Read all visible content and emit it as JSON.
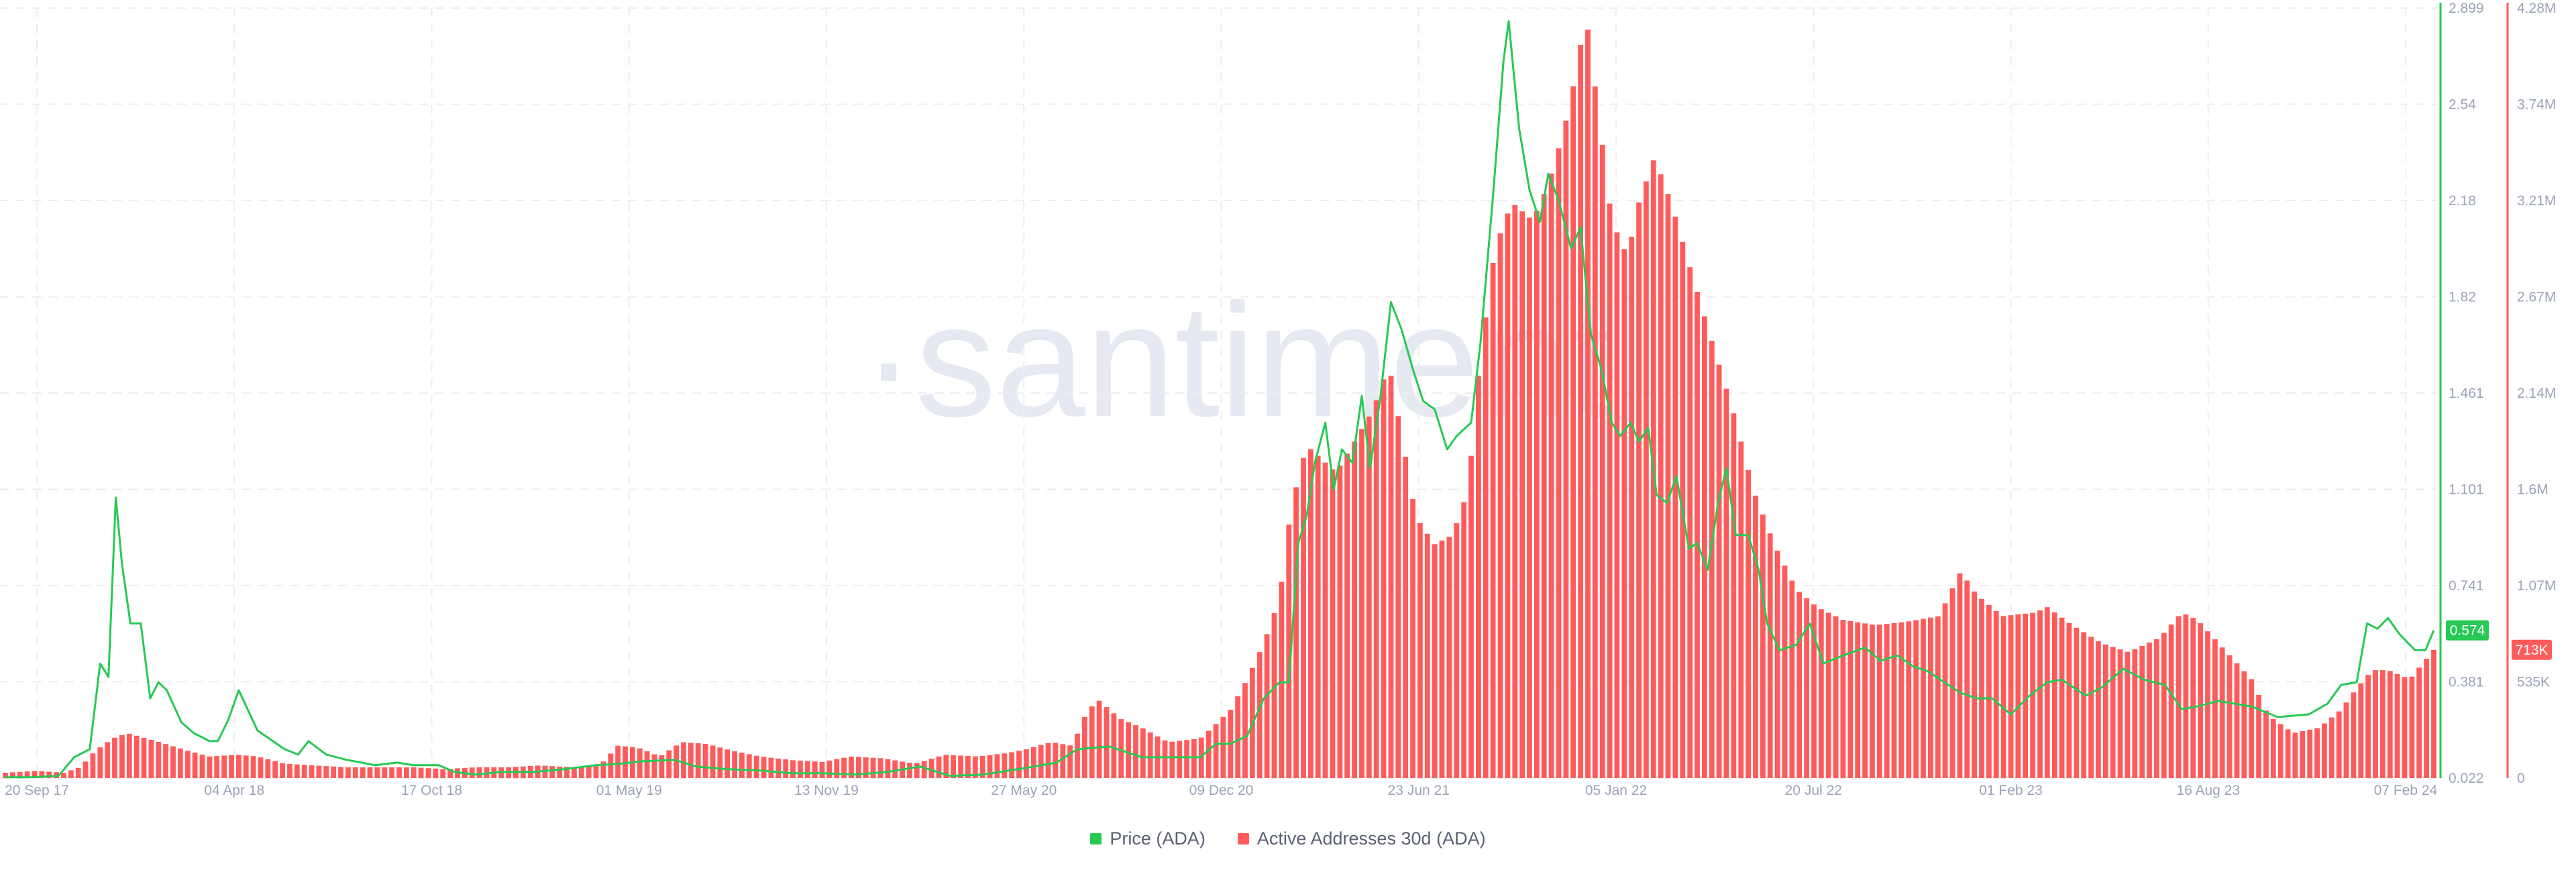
{
  "watermark": "·santiment",
  "legend": [
    {
      "label": "Price (ADA)",
      "color": "#26c953"
    },
    {
      "label": "Active Addresses 30d (ADA)",
      "color": "#ff5b5b"
    }
  ],
  "chart_data": {
    "type": "bar",
    "x_ticks": [
      "20 Sep 17",
      "04 Apr 18",
      "17 Oct 18",
      "01 May 19",
      "13 Nov 19",
      "27 May 20",
      "09 Dec 20",
      "23 Jun 21",
      "05 Jan 22",
      "20 Jul 22",
      "01 Feb 23",
      "16 Aug 23",
      "07 Feb 24"
    ],
    "x_range": [
      "2017-09-20",
      "2024-02-07"
    ],
    "price_axis": {
      "ticks": [
        "2.899",
        "2.54",
        "2.18",
        "1.82",
        "1.461",
        "1.101",
        "0.741",
        "0.381",
        "0.022"
      ],
      "ylim": [
        0.022,
        2.899
      ],
      "color": "#26c953"
    },
    "addresses_axis": {
      "ticks": [
        "4.28M",
        "3.74M",
        "3.21M",
        "2.67M",
        "2.14M",
        "1.6M",
        "1.07M",
        "535K",
        "0"
      ],
      "ylim": [
        0,
        4280000
      ],
      "color": "#ff5b5b"
    },
    "current_labels": {
      "price": "0.574",
      "addresses": "713K"
    },
    "grid": true,
    "legend_position": "bottom-center",
    "series": [
      {
        "name": "Price (ADA)",
        "type": "line",
        "color": "#26c953",
        "points": [
          [
            "2017-09-20",
            0.025
          ],
          [
            "2017-10-15",
            0.025
          ],
          [
            "2017-11-10",
            0.03
          ],
          [
            "2017-11-25",
            0.1
          ],
          [
            "2017-12-10",
            0.13
          ],
          [
            "2017-12-20",
            0.45
          ],
          [
            "2017-12-28",
            0.4
          ],
          [
            "2018-01-04",
            1.07
          ],
          [
            "2018-01-10",
            0.82
          ],
          [
            "2018-01-18",
            0.6
          ],
          [
            "2018-01-28",
            0.6
          ],
          [
            "2018-02-06",
            0.32
          ],
          [
            "2018-02-14",
            0.38
          ],
          [
            "2018-02-22",
            0.35
          ],
          [
            "2018-03-08",
            0.23
          ],
          [
            "2018-03-20",
            0.19
          ],
          [
            "2018-04-04",
            0.16
          ],
          [
            "2018-04-12",
            0.16
          ],
          [
            "2018-04-22",
            0.24
          ],
          [
            "2018-05-02",
            0.35
          ],
          [
            "2018-05-20",
            0.2
          ],
          [
            "2018-06-15",
            0.13
          ],
          [
            "2018-06-28",
            0.11
          ],
          [
            "2018-07-08",
            0.16
          ],
          [
            "2018-07-25",
            0.11
          ],
          [
            "2018-08-14",
            0.09
          ],
          [
            "2018-09-10",
            0.07
          ],
          [
            "2018-10-01",
            0.08
          ],
          [
            "2018-10-17",
            0.07
          ],
          [
            "2018-11-10",
            0.07
          ],
          [
            "2018-11-25",
            0.045
          ],
          [
            "2018-12-15",
            0.035
          ],
          [
            "2019-01-10",
            0.045
          ],
          [
            "2019-02-10",
            0.045
          ],
          [
            "2019-03-10",
            0.055
          ],
          [
            "2019-04-10",
            0.07
          ],
          [
            "2019-05-01",
            0.075
          ],
          [
            "2019-05-25",
            0.085
          ],
          [
            "2019-06-25",
            0.09
          ],
          [
            "2019-07-15",
            0.065
          ],
          [
            "2019-08-15",
            0.055
          ],
          [
            "2019-09-15",
            0.05
          ],
          [
            "2019-10-15",
            0.04
          ],
          [
            "2019-11-13",
            0.04
          ],
          [
            "2019-12-15",
            0.035
          ],
          [
            "2020-01-15",
            0.045
          ],
          [
            "2020-02-15",
            0.065
          ],
          [
            "2020-03-15",
            0.03
          ],
          [
            "2020-04-15",
            0.035
          ],
          [
            "2020-05-27",
            0.06
          ],
          [
            "2020-06-25",
            0.08
          ],
          [
            "2020-07-15",
            0.13
          ],
          [
            "2020-08-15",
            0.14
          ],
          [
            "2020-09-15",
            0.1
          ],
          [
            "2020-10-15",
            0.1
          ],
          [
            "2020-11-10",
            0.1
          ],
          [
            "2020-11-25",
            0.15
          ],
          [
            "2020-12-09",
            0.15
          ],
          [
            "2020-12-25",
            0.18
          ],
          [
            "2021-01-10",
            0.32
          ],
          [
            "2021-01-25",
            0.38
          ],
          [
            "2021-02-03",
            0.38
          ],
          [
            "2021-02-12",
            0.9
          ],
          [
            "2021-02-20",
            1.0
          ],
          [
            "2021-02-28",
            1.2
          ],
          [
            "2021-03-10",
            1.35
          ],
          [
            "2021-03-18",
            1.1
          ],
          [
            "2021-03-26",
            1.25
          ],
          [
            "2021-04-05",
            1.2
          ],
          [
            "2021-04-14",
            1.45
          ],
          [
            "2021-04-22",
            1.18
          ],
          [
            "2021-05-02",
            1.45
          ],
          [
            "2021-05-12",
            1.8
          ],
          [
            "2021-05-22",
            1.7
          ],
          [
            "2021-06-02",
            1.55
          ],
          [
            "2021-06-12",
            1.43
          ],
          [
            "2021-06-23",
            1.4
          ],
          [
            "2021-07-05",
            1.25
          ],
          [
            "2021-07-14",
            1.3
          ],
          [
            "2021-07-28",
            1.35
          ],
          [
            "2021-08-06",
            1.65
          ],
          [
            "2021-08-18",
            2.2
          ],
          [
            "2021-08-28",
            2.7
          ],
          [
            "2021-09-02",
            2.85
          ],
          [
            "2021-09-12",
            2.45
          ],
          [
            "2021-09-22",
            2.22
          ],
          [
            "2021-10-02",
            2.1
          ],
          [
            "2021-10-10",
            2.28
          ],
          [
            "2021-10-20",
            2.18
          ],
          [
            "2021-11-01",
            2.0
          ],
          [
            "2021-11-10",
            2.08
          ],
          [
            "2021-11-20",
            1.68
          ],
          [
            "2021-11-30",
            1.55
          ],
          [
            "2021-12-10",
            1.35
          ],
          [
            "2021-12-18",
            1.3
          ],
          [
            "2021-12-28",
            1.35
          ],
          [
            "2022-01-05",
            1.28
          ],
          [
            "2022-01-14",
            1.33
          ],
          [
            "2022-01-22",
            1.08
          ],
          [
            "2022-02-01",
            1.05
          ],
          [
            "2022-02-10",
            1.15
          ],
          [
            "2022-02-22",
            0.88
          ],
          [
            "2022-03-02",
            0.9
          ],
          [
            "2022-03-12",
            0.8
          ],
          [
            "2022-03-22",
            1.05
          ],
          [
            "2022-03-30",
            1.18
          ],
          [
            "2022-04-08",
            0.93
          ],
          [
            "2022-04-20",
            0.93
          ],
          [
            "2022-04-30",
            0.8
          ],
          [
            "2022-05-08",
            0.6
          ],
          [
            "2022-05-20",
            0.5
          ],
          [
            "2022-06-05",
            0.52
          ],
          [
            "2022-06-18",
            0.6
          ],
          [
            "2022-07-01",
            0.45
          ],
          [
            "2022-07-20",
            0.48
          ],
          [
            "2022-08-10",
            0.51
          ],
          [
            "2022-08-25",
            0.46
          ],
          [
            "2022-09-10",
            0.48
          ],
          [
            "2022-09-25",
            0.44
          ],
          [
            "2022-10-10",
            0.42
          ],
          [
            "2022-10-25",
            0.38
          ],
          [
            "2022-11-10",
            0.34
          ],
          [
            "2022-11-25",
            0.32
          ],
          [
            "2022-12-10",
            0.32
          ],
          [
            "2022-12-28",
            0.26
          ],
          [
            "2023-01-15",
            0.33
          ],
          [
            "2023-02-01",
            0.38
          ],
          [
            "2023-02-15",
            0.39
          ],
          [
            "2023-03-10",
            0.33
          ],
          [
            "2023-03-25",
            0.36
          ],
          [
            "2023-04-15",
            0.43
          ],
          [
            "2023-05-05",
            0.39
          ],
          [
            "2023-05-25",
            0.37
          ],
          [
            "2023-06-10",
            0.28
          ],
          [
            "2023-06-25",
            0.29
          ],
          [
            "2023-07-15",
            0.31
          ],
          [
            "2023-08-16",
            0.29
          ],
          [
            "2023-09-10",
            0.25
          ],
          [
            "2023-10-10",
            0.26
          ],
          [
            "2023-10-28",
            0.3
          ],
          [
            "2023-11-10",
            0.37
          ],
          [
            "2023-11-25",
            0.38
          ],
          [
            "2023-12-05",
            0.6
          ],
          [
            "2023-12-15",
            0.58
          ],
          [
            "2023-12-25",
            0.62
          ],
          [
            "2024-01-05",
            0.56
          ],
          [
            "2024-01-20",
            0.5
          ],
          [
            "2024-01-30",
            0.5
          ],
          [
            "2024-02-07",
            0.574
          ]
        ]
      },
      {
        "name": "Active Addresses 30d (ADA)",
        "type": "bar",
        "color": "#ff5b5b",
        "points": [
          [
            "2017-09-20",
            0.03
          ],
          [
            "2017-10-20",
            0.04
          ],
          [
            "2017-11-15",
            0.03
          ],
          [
            "2017-12-01",
            0.06
          ],
          [
            "2017-12-15",
            0.15
          ],
          [
            "2018-01-01",
            0.22
          ],
          [
            "2018-01-15",
            0.25
          ],
          [
            "2018-02-15",
            0.2
          ],
          [
            "2018-03-15",
            0.15
          ],
          [
            "2018-04-04",
            0.12
          ],
          [
            "2018-05-01",
            0.13
          ],
          [
            "2018-05-20",
            0.12
          ],
          [
            "2018-06-15",
            0.08
          ],
          [
            "2018-07-15",
            0.07
          ],
          [
            "2018-08-15",
            0.06
          ],
          [
            "2018-10-17",
            0.06
          ],
          [
            "2018-11-15",
            0.05
          ],
          [
            "2018-12-15",
            0.06
          ],
          [
            "2019-01-15",
            0.06
          ],
          [
            "2019-02-15",
            0.07
          ],
          [
            "2019-03-20",
            0.06
          ],
          [
            "2019-04-15",
            0.08
          ],
          [
            "2019-05-01",
            0.18
          ],
          [
            "2019-05-20",
            0.17
          ],
          [
            "2019-06-10",
            0.12
          ],
          [
            "2019-07-01",
            0.2
          ],
          [
            "2019-07-25",
            0.19
          ],
          [
            "2019-08-20",
            0.15
          ],
          [
            "2019-09-15",
            0.12
          ],
          [
            "2019-10-15",
            0.1
          ],
          [
            "2019-11-13",
            0.09
          ],
          [
            "2019-12-10",
            0.12
          ],
          [
            "2020-01-10",
            0.11
          ],
          [
            "2020-02-10",
            0.08
          ],
          [
            "2020-03-10",
            0.13
          ],
          [
            "2020-04-10",
            0.12
          ],
          [
            "2020-05-10",
            0.14
          ],
          [
            "2020-05-27",
            0.16
          ],
          [
            "2020-06-20",
            0.2
          ],
          [
            "2020-07-10",
            0.18
          ],
          [
            "2020-07-25",
            0.38
          ],
          [
            "2020-08-05",
            0.43
          ],
          [
            "2020-08-25",
            0.33
          ],
          [
            "2020-09-15",
            0.28
          ],
          [
            "2020-10-10",
            0.2
          ],
          [
            "2020-11-10",
            0.22
          ],
          [
            "2020-11-25",
            0.3
          ],
          [
            "2020-12-09",
            0.38
          ],
          [
            "2020-12-25",
            0.55
          ],
          [
            "2021-01-10",
            0.75
          ],
          [
            "2021-01-25",
            1.0
          ],
          [
            "2021-02-05",
            1.5
          ],
          [
            "2021-02-20",
            1.85
          ],
          [
            "2021-03-05",
            1.78
          ],
          [
            "2021-03-20",
            1.7
          ],
          [
            "2021-04-05",
            1.85
          ],
          [
            "2021-04-25",
            2.05
          ],
          [
            "2021-05-10",
            2.3
          ],
          [
            "2021-05-25",
            1.82
          ],
          [
            "2021-06-05",
            1.45
          ],
          [
            "2021-06-23",
            1.3
          ],
          [
            "2021-07-10",
            1.35
          ],
          [
            "2021-07-25",
            1.6
          ],
          [
            "2021-08-05",
            2.3
          ],
          [
            "2021-08-20",
            2.95
          ],
          [
            "2021-09-05",
            3.2
          ],
          [
            "2021-09-25",
            3.1
          ],
          [
            "2021-10-10",
            3.3
          ],
          [
            "2021-10-25",
            3.6
          ],
          [
            "2021-11-05",
            3.9
          ],
          [
            "2021-11-15",
            4.25
          ],
          [
            "2021-11-25",
            3.8
          ],
          [
            "2021-12-10",
            3.1
          ],
          [
            "2021-12-25",
            2.9
          ],
          [
            "2022-01-05",
            3.2
          ],
          [
            "2022-01-20",
            3.45
          ],
          [
            "2022-02-05",
            3.2
          ],
          [
            "2022-02-25",
            2.8
          ],
          [
            "2022-03-15",
            2.45
          ],
          [
            "2022-04-05",
            2.05
          ],
          [
            "2022-04-25",
            1.6
          ],
          [
            "2022-05-15",
            1.3
          ],
          [
            "2022-06-05",
            1.05
          ],
          [
            "2022-06-25",
            0.95
          ],
          [
            "2022-07-20",
            0.88
          ],
          [
            "2022-08-20",
            0.85
          ],
          [
            "2022-09-20",
            0.87
          ],
          [
            "2022-10-20",
            0.9
          ],
          [
            "2022-11-10",
            1.15
          ],
          [
            "2022-11-25",
            1.02
          ],
          [
            "2022-12-20",
            0.9
          ],
          [
            "2023-01-20",
            0.92
          ],
          [
            "2023-02-01",
            0.95
          ],
          [
            "2023-02-25",
            0.85
          ],
          [
            "2023-03-25",
            0.75
          ],
          [
            "2023-04-20",
            0.7
          ],
          [
            "2023-05-20",
            0.78
          ],
          [
            "2023-06-10",
            0.92
          ],
          [
            "2023-06-25",
            0.88
          ],
          [
            "2023-07-20",
            0.72
          ],
          [
            "2023-08-16",
            0.55
          ],
          [
            "2023-09-01",
            0.35
          ],
          [
            "2023-09-25",
            0.25
          ],
          [
            "2023-10-20",
            0.28
          ],
          [
            "2023-11-10",
            0.38
          ],
          [
            "2023-11-25",
            0.5
          ],
          [
            "2023-12-10",
            0.6
          ],
          [
            "2023-12-25",
            0.6
          ],
          [
            "2024-01-15",
            0.55
          ],
          [
            "2024-02-07",
            0.713
          ]
        ]
      }
    ]
  }
}
